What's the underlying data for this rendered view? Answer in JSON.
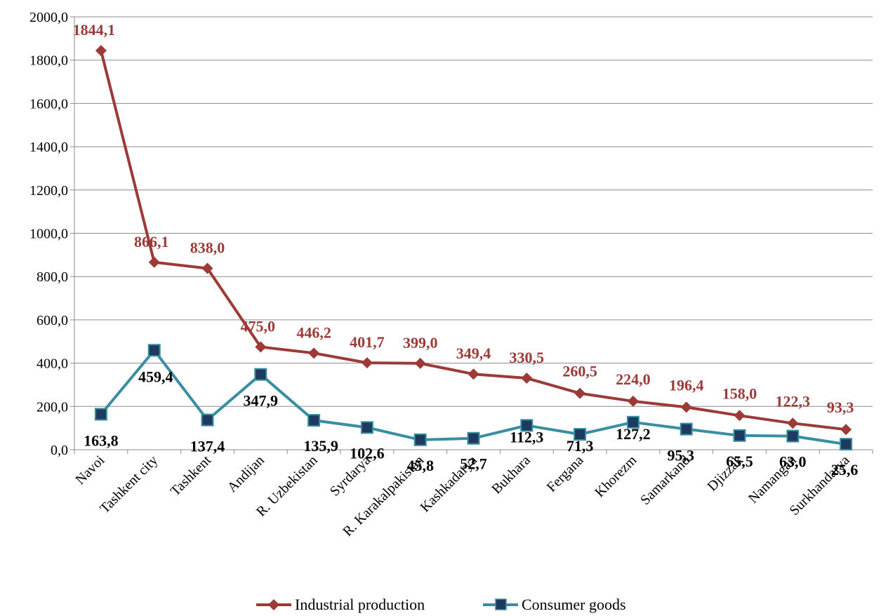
{
  "chart_data": {
    "type": "line",
    "title": "",
    "xlabel": "",
    "ylabel": "",
    "ylim": [
      0,
      2000
    ],
    "y_ticks": [
      "0,0",
      "200,0",
      "400,0",
      "600,0",
      "800,0",
      "1000,0",
      "1200,0",
      "1400,0",
      "1600,0",
      "1800,0",
      "2000,0"
    ],
    "grid": "horizontal",
    "legend_position": "bottom",
    "categories": [
      "Navoi",
      "Tashkent city",
      "Tashkent",
      "Andijan",
      "R. Uzbekistan",
      "Syrdarya",
      "R. Karakalpakistan",
      "Kashkadarya",
      "Bukhara",
      "Fergana",
      "Khorezm",
      "Samarkand",
      "Djizzak",
      "Namangan",
      "Surkhandarya"
    ],
    "series": [
      {
        "name": "Industrial production",
        "color": "#9C3A37",
        "marker": "diamond",
        "values": [
          1844.1,
          866.1,
          838.0,
          475.0,
          446.2,
          401.7,
          399.0,
          349.4,
          330.5,
          260.5,
          224.0,
          196.4,
          158.0,
          122.3,
          93.3
        ],
        "labels": [
          "1844,1",
          "866,1",
          "838,0",
          "475,0",
          "446,2",
          "401,7",
          "399,0",
          "349,4",
          "330,5",
          "260,5",
          "224,0",
          "196,4",
          "158,0",
          "122,3",
          "93,3"
        ]
      },
      {
        "name": "Consumer goods",
        "color": "#3A8EA3",
        "marker": "square",
        "marker_color": "#1F3A5F",
        "values": [
          163.8,
          459.4,
          137.4,
          347.9,
          135.9,
          102.6,
          45.8,
          52.7,
          112.3,
          71.3,
          127.2,
          95.3,
          65.5,
          63.0,
          25.6
        ],
        "labels": [
          "163,8",
          "459,4",
          "137,4",
          "347,9",
          "135,9",
          "102,6",
          "45,8",
          "52,7",
          "112,3",
          "71,3",
          "127,2",
          "95,3",
          "65,5",
          "63,0",
          "25,6"
        ]
      }
    ]
  }
}
